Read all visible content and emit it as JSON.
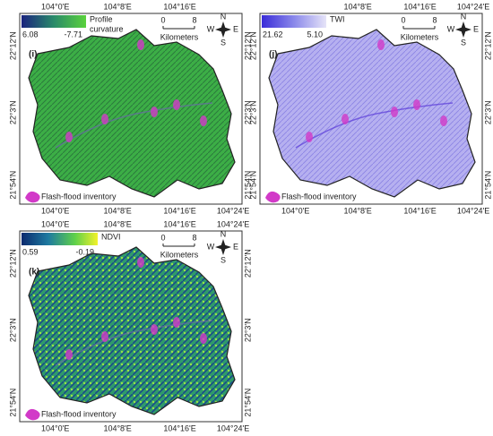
{
  "panels": [
    {
      "label": "(i)",
      "legend": {
        "title_lines": [
          "Profile",
          "curvature"
        ],
        "max": "6.08",
        "min": "-7.71"
      },
      "top_lon_labels": [
        "104°0'E",
        "104°8'E",
        "104°16'E"
      ],
      "bottom_lon_labels": [
        "104°0'E",
        "104°8'E",
        "104°16'E",
        "104°24'E"
      ],
      "left_lat_labels": [
        "22°12'N",
        "22°3'N",
        "21°54'N"
      ],
      "right_lat_labels": [
        "22°12'N",
        "22°3'N",
        "21°54'N"
      ],
      "scale": {
        "start": "0",
        "end": "8",
        "unit": "Kilometers"
      },
      "compass": {
        "n": "N",
        "s": "S",
        "w": "W",
        "e": "E"
      },
      "inventory": "Flash-flood inventory"
    },
    {
      "label": "(j)",
      "legend": {
        "title_lines": [
          "TWI"
        ],
        "max": "21.62",
        "min": "5.10"
      },
      "top_lon_labels": [
        "104°8'E",
        "104°16'E",
        "104°24'E"
      ],
      "bottom_lon_labels": [
        "104°0'E",
        "104°8'E",
        "104°16'E",
        "104°24'E"
      ],
      "left_lat_labels": [
        "22°12'N",
        "22°3'N",
        "21°54'N"
      ],
      "right_lat_labels": [
        "22°12'N",
        "22°3'N",
        "21°54'N"
      ],
      "scale": {
        "start": "0",
        "end": "8",
        "unit": "Kilometers"
      },
      "compass": {
        "n": "N",
        "s": "S",
        "w": "W",
        "e": "E"
      },
      "inventory": "Flash-flood inventory"
    },
    {
      "label": "(k)",
      "legend": {
        "title_lines": [
          "NDVI"
        ],
        "max": "0.59",
        "min": "-0.19"
      },
      "top_lon_labels": [
        "104°0'E",
        "104°8'E",
        "104°16'E",
        "104°24'E"
      ],
      "bottom_lon_labels": [
        "104°0'E",
        "104°8'E",
        "104°16'E",
        "104°24'E"
      ],
      "left_lat_labels": [
        "22°12'N",
        "22°3'N",
        "21°54'N"
      ],
      "right_lat_labels": [
        "22°12'N",
        "22°3'N",
        "21°54'N"
      ],
      "scale": {
        "start": "0",
        "end": "8",
        "unit": "Kilometers"
      },
      "compass": {
        "n": "N",
        "s": "S",
        "w": "W",
        "e": "E"
      },
      "inventory": "Flash-flood inventory"
    }
  ]
}
